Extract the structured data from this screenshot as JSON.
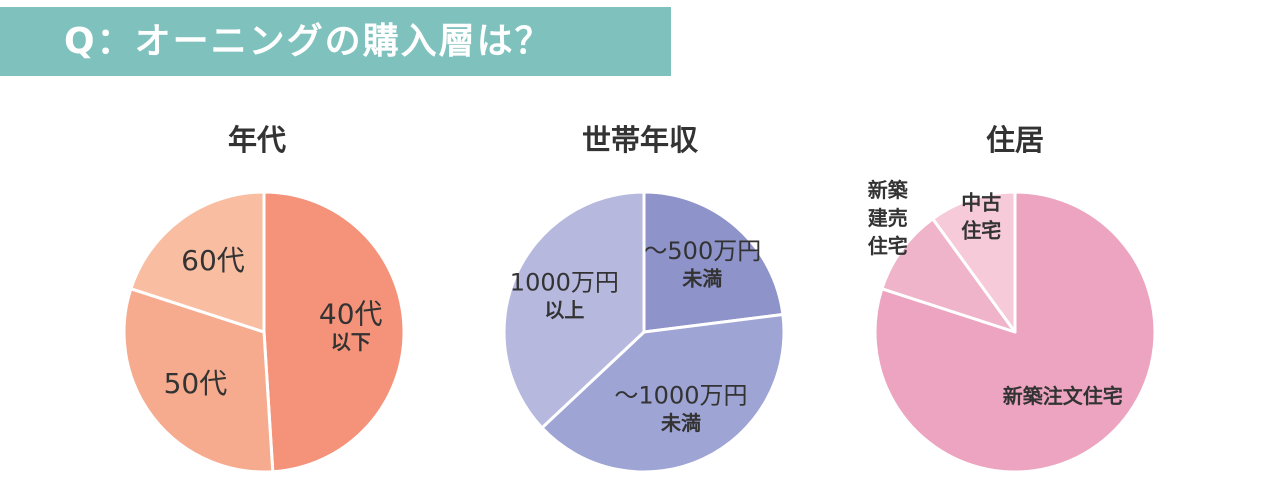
{
  "header": {
    "title": "Q：オーニングの購入層は？"
  },
  "chart_data": [
    {
      "type": "pie",
      "title": "年代",
      "slices": [
        {
          "label_lines": [
            "40代",
            "以下"
          ],
          "value": 49,
          "color": "#f4937a"
        },
        {
          "label_lines": [
            "50代"
          ],
          "value": 31,
          "color": "#f6ab8f"
        },
        {
          "label_lines": [
            "60代"
          ],
          "value": 20,
          "color": "#f9bea2"
        }
      ]
    },
    {
      "type": "pie",
      "title": "世帯年収",
      "slices": [
        {
          "label_lines": [
            "〜500万円",
            "未満"
          ],
          "value": 23,
          "color": "#8e93c9"
        },
        {
          "label_lines": [
            "〜1000万円",
            "未満"
          ],
          "value": 40,
          "color": "#9ea4d3"
        },
        {
          "label_lines": [
            "1000万円",
            "以上"
          ],
          "value": 37,
          "color": "#b6b8de"
        }
      ]
    },
    {
      "type": "pie",
      "title": "住居",
      "slices": [
        {
          "label_lines": [
            "新築注文住宅"
          ],
          "value": 80,
          "color": "#eca4c0"
        },
        {
          "label_lines": [
            "新築",
            "建売",
            "住宅"
          ],
          "value": 10,
          "color": "#f0b4ca"
        },
        {
          "label_lines": [
            "中古",
            "住宅"
          ],
          "value": 10,
          "color": "#f6cad9"
        }
      ]
    }
  ]
}
